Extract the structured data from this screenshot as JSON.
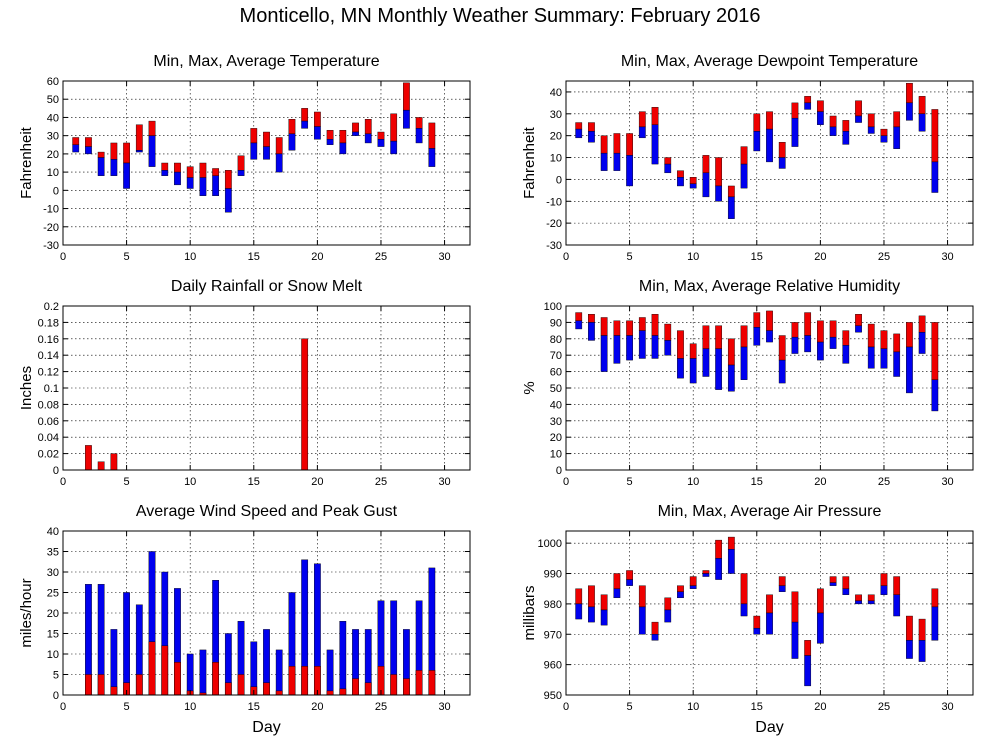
{
  "page": {
    "title": "Monticello, MN Monthly Weather Summary: February 2016"
  },
  "chart_data": [
    {
      "type": "bar",
      "title": "Min, Max, Average Temperature",
      "ylabel": "Fahrenheit",
      "xlabel": "",
      "xlim": [
        0,
        32
      ],
      "xticks": [
        0,
        5,
        10,
        15,
        20,
        25,
        30
      ],
      "ylim": [
        -30,
        60
      ],
      "yticks": [
        -30,
        -20,
        -10,
        0,
        10,
        20,
        30,
        40,
        50,
        60
      ],
      "grid": true,
      "colors": {
        "upper": "#ee0000",
        "lower": "#0000ee"
      },
      "days": [
        1,
        2,
        3,
        4,
        5,
        6,
        7,
        8,
        9,
        10,
        11,
        12,
        13,
        14,
        15,
        16,
        17,
        18,
        19,
        20,
        21,
        22,
        23,
        24,
        25,
        26,
        27,
        28,
        29
      ],
      "series": [
        {
          "name": "max",
          "values": [
            29,
            29,
            21,
            26,
            26,
            36,
            38,
            15,
            15,
            13,
            15,
            12,
            11,
            19,
            34,
            32,
            29,
            39,
            45,
            43,
            33,
            33,
            37,
            39,
            32,
            42,
            59,
            40,
            37
          ]
        },
        {
          "name": "avg",
          "values": [
            25,
            24,
            18,
            17,
            15,
            22,
            30,
            11,
            10,
            7,
            7,
            8,
            1,
            11,
            26,
            24,
            20,
            31,
            38,
            35,
            28,
            26,
            32,
            31,
            28,
            27,
            44,
            34,
            23
          ]
        },
        {
          "name": "min",
          "values": [
            21,
            20,
            8,
            8,
            1,
            21,
            13,
            8,
            3,
            1,
            -3,
            -3,
            -12,
            8,
            17,
            17,
            10,
            22,
            34,
            28,
            25,
            20,
            30,
            26,
            24,
            20,
            34,
            26,
            13
          ]
        }
      ]
    },
    {
      "type": "bar",
      "title": "Min, Max, Average Dewpoint Temperature",
      "ylabel": "Fahrenheit",
      "xlabel": "",
      "xlim": [
        0,
        32
      ],
      "xticks": [
        0,
        5,
        10,
        15,
        20,
        25,
        30
      ],
      "ylim": [
        -30,
        45
      ],
      "yticks": [
        -30,
        -20,
        -10,
        0,
        10,
        20,
        30,
        40
      ],
      "grid": true,
      "colors": {
        "upper": "#ee0000",
        "lower": "#0000ee"
      },
      "days": [
        1,
        2,
        3,
        4,
        5,
        6,
        7,
        8,
        9,
        10,
        11,
        12,
        13,
        14,
        15,
        16,
        17,
        18,
        19,
        20,
        21,
        22,
        23,
        24,
        25,
        26,
        27,
        28,
        29
      ],
      "series": [
        {
          "name": "max",
          "values": [
            26,
            26,
            20,
            21,
            21,
            31,
            33,
            10,
            4,
            1,
            11,
            10,
            -3,
            15,
            30,
            31,
            17,
            35,
            38,
            36,
            29,
            27,
            36,
            30,
            23,
            31,
            44,
            38,
            32
          ]
        },
        {
          "name": "avg",
          "values": [
            23,
            22,
            12,
            12,
            11,
            24,
            25,
            7,
            1,
            -2,
            3,
            -3,
            -8,
            7,
            22,
            23,
            10,
            28,
            35,
            31,
            24,
            22,
            29,
            24,
            20,
            24,
            35,
            30,
            8
          ]
        },
        {
          "name": "min",
          "values": [
            19,
            17,
            4,
            4,
            -3,
            19,
            7,
            3,
            -3,
            -4,
            -8,
            -10,
            -18,
            -4,
            13,
            8,
            5,
            15,
            32,
            25,
            20,
            16,
            26,
            21,
            17,
            14,
            27,
            22,
            -6
          ]
        }
      ]
    },
    {
      "type": "bar",
      "title": "Daily Rainfall or Snow Melt",
      "ylabel": "Inches",
      "xlabel": "",
      "xlim": [
        0,
        32
      ],
      "xticks": [
        0,
        5,
        10,
        15,
        20,
        25,
        30
      ],
      "ylim": [
        0,
        0.2
      ],
      "yticks": [
        0,
        0.02,
        0.04,
        0.06,
        0.08,
        0.1,
        0.12,
        0.14,
        0.16,
        0.18,
        0.2
      ],
      "grid": true,
      "colors": {
        "upper": "#ee0000",
        "lower": "#0000ee"
      },
      "days": [
        2,
        3,
        4,
        19
      ],
      "values": [
        0.03,
        0.01,
        0.02,
        0.16
      ]
    },
    {
      "type": "bar",
      "title": "Min, Max, Average Relative Humidity",
      "ylabel": "%",
      "xlabel": "",
      "xlim": [
        0,
        32
      ],
      "xticks": [
        0,
        5,
        10,
        15,
        20,
        25,
        30
      ],
      "ylim": [
        0,
        100
      ],
      "yticks": [
        0,
        10,
        20,
        30,
        40,
        50,
        60,
        70,
        80,
        90,
        100
      ],
      "grid": true,
      "colors": {
        "upper": "#ee0000",
        "lower": "#0000ee"
      },
      "days": [
        1,
        2,
        3,
        4,
        5,
        6,
        7,
        8,
        9,
        10,
        11,
        12,
        13,
        14,
        15,
        16,
        17,
        18,
        19,
        20,
        21,
        22,
        23,
        24,
        25,
        26,
        27,
        28,
        29
      ],
      "series": [
        {
          "name": "max",
          "values": [
            96,
            95,
            93,
            91,
            91,
            93,
            95,
            89,
            85,
            77,
            88,
            88,
            80,
            88,
            96,
            97,
            82,
            90,
            96,
            91,
            91,
            85,
            95,
            89,
            85,
            83,
            90,
            94,
            90
          ]
        },
        {
          "name": "avg",
          "values": [
            91,
            90,
            82,
            82,
            82,
            85,
            82,
            79,
            68,
            68,
            74,
            74,
            64,
            75,
            87,
            85,
            67,
            81,
            82,
            78,
            81,
            76,
            88,
            75,
            74,
            72,
            75,
            84,
            55
          ]
        },
        {
          "name": "min",
          "values": [
            86,
            79,
            60,
            65,
            67,
            68,
            68,
            70,
            56,
            53,
            57,
            49,
            48,
            55,
            76,
            78,
            53,
            71,
            72,
            67,
            74,
            65,
            84,
            62,
            62,
            57,
            47,
            71,
            36
          ]
        }
      ]
    },
    {
      "type": "bar",
      "title": "Average Wind Speed and Peak Gust",
      "ylabel": "miles/hour",
      "xlabel": "Day",
      "xlim": [
        0,
        32
      ],
      "xticks": [
        0,
        5,
        10,
        15,
        20,
        25,
        30
      ],
      "ylim": [
        0,
        40
      ],
      "yticks": [
        0,
        5,
        10,
        15,
        20,
        25,
        30,
        35,
        40
      ],
      "grid": true,
      "colors": {
        "upper": "#ee0000",
        "lower": "#0000ee"
      },
      "days": [
        2,
        3,
        4,
        5,
        6,
        7,
        8,
        9,
        10,
        11,
        12,
        13,
        14,
        15,
        16,
        17,
        18,
        19,
        20,
        21,
        22,
        23,
        24,
        25,
        26,
        27,
        28,
        29
      ],
      "series": [
        {
          "name": "peak_gust",
          "values": [
            27,
            27,
            16,
            25,
            22,
            35,
            30,
            26,
            10,
            11,
            28,
            15,
            18,
            13,
            16,
            11,
            25,
            33,
            32,
            11,
            18,
            16,
            16,
            23,
            23,
            16,
            23,
            31
          ]
        },
        {
          "name": "avg_speed",
          "values": [
            5,
            5,
            2,
            3,
            5,
            13,
            12,
            8,
            1,
            0.5,
            8,
            3,
            5,
            2,
            3,
            1,
            7,
            7,
            7,
            1,
            1.5,
            4,
            3,
            7,
            5,
            4,
            6,
            6
          ]
        }
      ]
    },
    {
      "type": "bar",
      "title": "Min, Max, Average Air Pressure",
      "ylabel": "millibars",
      "xlabel": "Day",
      "xlim": [
        0,
        32
      ],
      "xticks": [
        0,
        5,
        10,
        15,
        20,
        25,
        30
      ],
      "ylim": [
        950,
        1004
      ],
      "yticks": [
        950,
        960,
        970,
        980,
        990,
        1000
      ],
      "grid": true,
      "colors": {
        "upper": "#ee0000",
        "lower": "#0000ee"
      },
      "days": [
        1,
        2,
        3,
        4,
        5,
        6,
        7,
        8,
        9,
        10,
        11,
        12,
        13,
        14,
        15,
        16,
        17,
        18,
        19,
        20,
        21,
        22,
        23,
        24,
        25,
        26,
        27,
        28,
        29
      ],
      "series": [
        {
          "name": "max",
          "values": [
            985,
            986,
            983,
            990,
            991,
            986,
            974,
            982,
            986,
            989,
            991,
            1001,
            1002,
            990,
            976,
            983,
            989,
            984,
            968,
            985,
            989,
            989,
            983,
            983,
            990,
            989,
            976,
            975,
            985
          ]
        },
        {
          "name": "avg",
          "values": [
            980,
            979,
            978,
            985,
            988,
            979,
            970,
            978,
            984,
            986,
            990,
            995,
            998,
            980,
            972,
            977,
            986,
            974,
            963,
            977,
            987,
            985,
            981,
            981,
            986,
            983,
            968,
            968,
            979
          ]
        },
        {
          "name": "min",
          "values": [
            975,
            974,
            973,
            982,
            986,
            970,
            968,
            974,
            982,
            985,
            989,
            988,
            990,
            976,
            970,
            970,
            984,
            962,
            953,
            967,
            986,
            983,
            980,
            980,
            983,
            976,
            962,
            961,
            968
          ]
        }
      ]
    }
  ]
}
